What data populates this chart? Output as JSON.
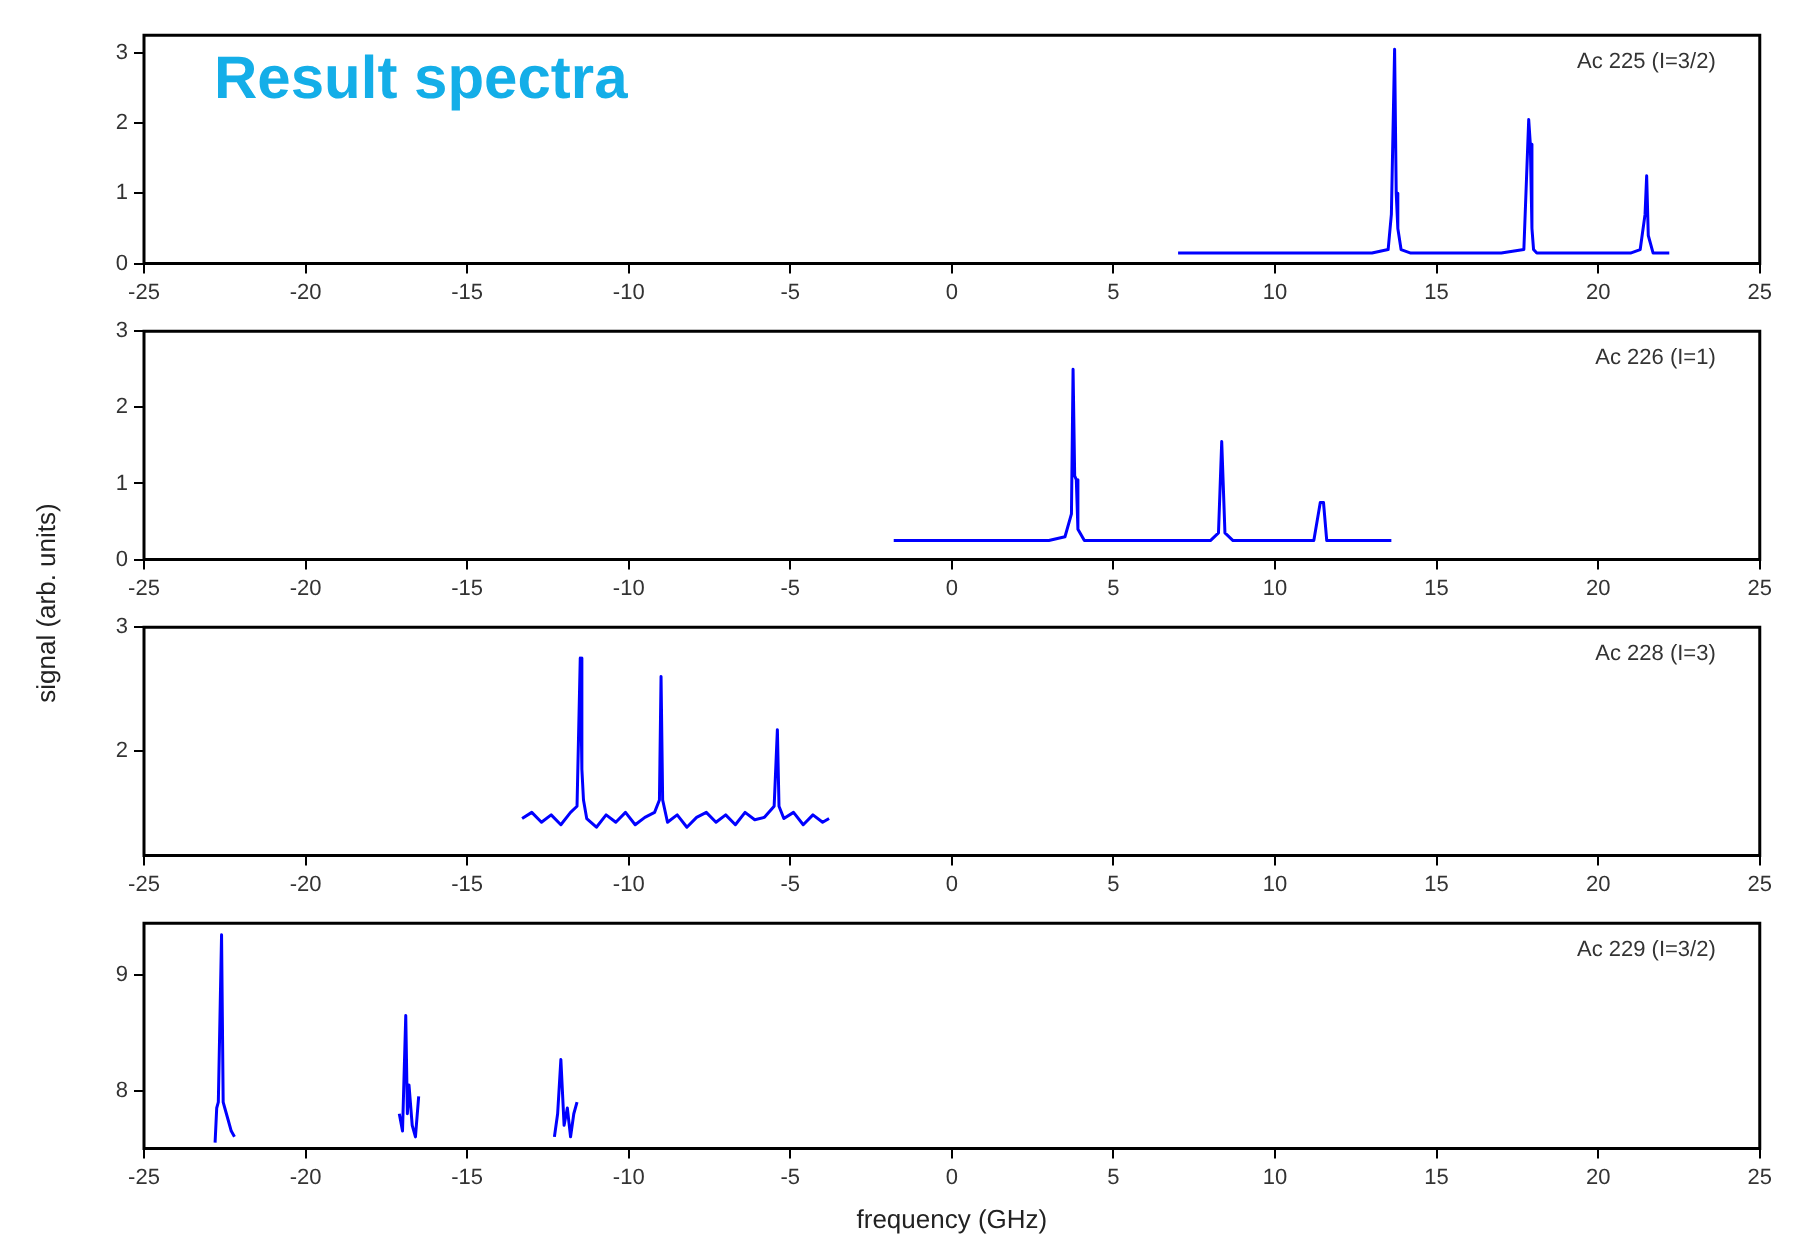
{
  "chart_data": [
    {
      "type": "line",
      "title": "Result spectra",
      "annotations": [
        "Ac 225 (I=3/2)"
      ],
      "xlim": [
        -25,
        25
      ],
      "xticks": [
        -25,
        -20,
        -15,
        -10,
        -5,
        0,
        5,
        10,
        15,
        20,
        25
      ],
      "ylim": [
        0,
        3.25
      ],
      "yticks": [
        0,
        1,
        2,
        3
      ],
      "grid": false,
      "marker": "none",
      "series": [
        {
          "color": "#0000ff",
          "x": [
            7,
            8,
            9,
            10,
            11,
            12,
            13,
            13.5,
            13.6,
            13.7,
            13.75,
            13.8,
            13.9,
            14.2,
            15,
            16,
            17,
            17.7,
            17.85,
            17.9,
            17.95,
            18.0,
            18.1,
            18.5,
            19,
            20,
            21,
            21.3,
            21.45,
            21.5,
            21.55,
            21.7,
            22.2
          ],
          "values": [
            0.15,
            0.15,
            0.15,
            0.15,
            0.15,
            0.15,
            0.15,
            0.2,
            0.7,
            3.05,
            1.0,
            0.5,
            0.2,
            0.15,
            0.15,
            0.15,
            0.15,
            0.2,
            2.05,
            1.7,
            0.5,
            0.2,
            0.15,
            0.15,
            0.15,
            0.15,
            0.15,
            0.2,
            0.7,
            1.25,
            0.4,
            0.15,
            0.15
          ]
        }
      ]
    },
    {
      "type": "line",
      "ylabel": "signal (arb. units)",
      "annotations": [
        "Ac 226 (I=1)"
      ],
      "xlim": [
        -25,
        25
      ],
      "xticks": [
        -25,
        -20,
        -15,
        -10,
        -5,
        0,
        5,
        10,
        15,
        20,
        25
      ],
      "ylim": [
        0,
        3
      ],
      "yticks": [
        0,
        1,
        2,
        3
      ],
      "grid": false,
      "marker": "none",
      "series": [
        {
          "color": "#0000ff",
          "x": [
            -1.8,
            -1,
            0,
            1,
            2,
            3,
            3.5,
            3.7,
            3.75,
            3.8,
            3.85,
            3.9,
            4.1,
            5,
            6,
            7,
            8,
            8.25,
            8.35,
            8.45,
            8.7,
            9.5,
            10.5,
            11.2,
            11.4,
            11.5,
            11.6,
            12.5,
            13.6
          ],
          "values": [
            0.25,
            0.25,
            0.25,
            0.25,
            0.25,
            0.25,
            0.3,
            0.6,
            2.5,
            1.1,
            1.05,
            0.4,
            0.25,
            0.25,
            0.25,
            0.25,
            0.25,
            0.35,
            1.55,
            0.35,
            0.25,
            0.25,
            0.25,
            0.25,
            0.75,
            0.75,
            0.25,
            0.25,
            0.25
          ]
        }
      ]
    },
    {
      "type": "line",
      "annotations": [
        "Ac 228 (I=3)"
      ],
      "xlim": [
        -25,
        25
      ],
      "xticks": [
        -25,
        -20,
        -15,
        -10,
        -5,
        0,
        5,
        10,
        15,
        20,
        25
      ],
      "ylim": [
        1.15,
        3
      ],
      "yticks": [
        2,
        3
      ],
      "grid": false,
      "marker": "none",
      "series": [
        {
          "color": "#0000ff",
          "x": [
            -13.3,
            -13,
            -12.7,
            -12.4,
            -12.1,
            -11.8,
            -11.6,
            -11.5,
            -11.45,
            -11.4,
            -11.3,
            -11,
            -10.7,
            -10.4,
            -10.1,
            -9.8,
            -9.5,
            -9.2,
            -9.05,
            -9.0,
            -8.95,
            -8.8,
            -8.5,
            -8.2,
            -7.9,
            -7.6,
            -7.3,
            -7,
            -6.7,
            -6.4,
            -6.1,
            -5.8,
            -5.5,
            -5.4,
            -5.35,
            -5.2,
            -4.9,
            -4.6,
            -4.3,
            -4.0,
            -3.8
          ],
          "values": [
            1.45,
            1.5,
            1.42,
            1.48,
            1.4,
            1.5,
            1.55,
            2.75,
            1.85,
            1.6,
            1.45,
            1.38,
            1.48,
            1.42,
            1.5,
            1.4,
            1.46,
            1.5,
            1.6,
            2.6,
            1.6,
            1.42,
            1.48,
            1.38,
            1.46,
            1.5,
            1.42,
            1.48,
            1.4,
            1.5,
            1.44,
            1.46,
            1.55,
            2.17,
            1.55,
            1.45,
            1.5,
            1.4,
            1.48,
            1.42,
            1.45
          ]
        }
      ]
    },
    {
      "type": "line",
      "xlabel": "frequency (GHz)",
      "annotations": [
        "Ac 229 (I=3/2)"
      ],
      "xlim": [
        -25,
        25
      ],
      "xticks": [
        -25,
        -20,
        -15,
        -10,
        -5,
        0,
        5,
        10,
        15,
        20,
        25
      ],
      "ylim": [
        7.5,
        9.45
      ],
      "yticks": [
        8,
        9
      ],
      "grid": false,
      "marker": "none",
      "series": [
        {
          "color": "#0000ff",
          "x": [
            -22.8,
            -22.75,
            -22.7,
            -22.6,
            -22.55,
            -22.5,
            -22.4,
            -22.3,
            -22.2,
            null,
            -17.1,
            -17.0,
            -16.9,
            -16.85,
            -16.8,
            -16.7,
            -16.6,
            -16.5,
            null,
            -12.3,
            -12.2,
            -12.1,
            -12.0,
            -11.9,
            -11.8,
            -11.7,
            -11.6
          ],
          "values": [
            7.55,
            7.85,
            7.9,
            9.35,
            7.9,
            7.85,
            7.75,
            7.65,
            7.6,
            null,
            7.8,
            7.65,
            8.65,
            7.8,
            8.05,
            7.7,
            7.6,
            7.95,
            null,
            7.6,
            7.8,
            8.27,
            7.7,
            7.85,
            7.6,
            7.8,
            7.9
          ]
        }
      ]
    }
  ]
}
